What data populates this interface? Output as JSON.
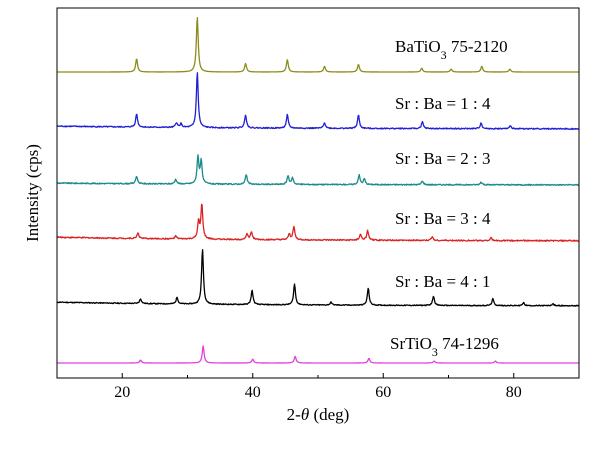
{
  "chart_data": {
    "type": "line",
    "title": "",
    "xlabel": "2-θ (deg)",
    "ylabel": "Intensity (cps)",
    "xlim": [
      10,
      90
    ],
    "xticks": [
      20,
      40,
      60,
      80
    ],
    "yticks_labeled": false,
    "grid": false,
    "legend": "none",
    "series": [
      {
        "name": "BaTiO3 75-2120",
        "label": {
          "base": "BaTiO",
          "sub": "3",
          "rest": " 75-2120"
        },
        "color": "#8c8c1a",
        "baseline": 0,
        "noise": 0,
        "peaks": [
          [
            22.2,
            14
          ],
          [
            31.5,
            58
          ],
          [
            38.9,
            9
          ],
          [
            45.3,
            13
          ],
          [
            51.0,
            6
          ],
          [
            56.2,
            8
          ],
          [
            65.9,
            4
          ],
          [
            70.4,
            3
          ],
          [
            75.1,
            6
          ],
          [
            79.4,
            3
          ]
        ]
      },
      {
        "name": "Sr : Ba = 1 : 4",
        "color": "#1f1fd6",
        "baseline": 3,
        "noise": 1.2,
        "peaks": [
          [
            22.2,
            14
          ],
          [
            28.3,
            5
          ],
          [
            29.0,
            4
          ],
          [
            31.5,
            58
          ],
          [
            38.9,
            14
          ],
          [
            45.3,
            14
          ],
          [
            51.0,
            6
          ],
          [
            56.2,
            14
          ],
          [
            66.0,
            7
          ],
          [
            75.0,
            6
          ],
          [
            79.5,
            3
          ]
        ]
      },
      {
        "name": "Sr : Ba = 2 : 3",
        "color": "#1a8a8a",
        "baseline": 2,
        "noise": 1.2,
        "peaks": [
          [
            22.2,
            8
          ],
          [
            28.2,
            5
          ],
          [
            31.6,
            28
          ],
          [
            32.1,
            24
          ],
          [
            39.0,
            10
          ],
          [
            45.4,
            9
          ],
          [
            46.1,
            7
          ],
          [
            56.3,
            10
          ],
          [
            57.1,
            6
          ],
          [
            66.0,
            4
          ],
          [
            75.0,
            3
          ]
        ]
      },
      {
        "name": "Sr : Ba = 3 : 4",
        "color": "#dd2222",
        "baseline": 4,
        "noise": 1.3,
        "peaks": [
          [
            22.4,
            6
          ],
          [
            28.2,
            3
          ],
          [
            31.7,
            18
          ],
          [
            32.2,
            36
          ],
          [
            39.1,
            6
          ],
          [
            39.8,
            8
          ],
          [
            45.6,
            6
          ],
          [
            46.3,
            14
          ],
          [
            56.5,
            6
          ],
          [
            57.6,
            10
          ],
          [
            67.5,
            4
          ],
          [
            76.5,
            3
          ]
        ]
      },
      {
        "name": "Sr : Ba = 4 : 1",
        "color": "#000000",
        "baseline": 4,
        "noise": 1.0,
        "peaks": [
          [
            22.8,
            5
          ],
          [
            28.4,
            7
          ],
          [
            32.3,
            58
          ],
          [
            39.9,
            15
          ],
          [
            46.4,
            22
          ],
          [
            52.0,
            3
          ],
          [
            57.7,
            18
          ],
          [
            67.7,
            10
          ],
          [
            76.8,
            7
          ],
          [
            81.5,
            3
          ],
          [
            86.0,
            2
          ]
        ]
      },
      {
        "name": "SrTiO3 74-1296",
        "label": {
          "base": "SrTiO",
          "sub": "3",
          "rest": " 74-1296"
        },
        "color": "#e040e0",
        "baseline": 0,
        "noise": 0,
        "peaks": [
          [
            22.8,
            3
          ],
          [
            32.4,
            18
          ],
          [
            40.0,
            4
          ],
          [
            46.5,
            7
          ],
          [
            57.8,
            5
          ],
          [
            67.8,
            2
          ],
          [
            77.2,
            2
          ]
        ]
      }
    ]
  }
}
